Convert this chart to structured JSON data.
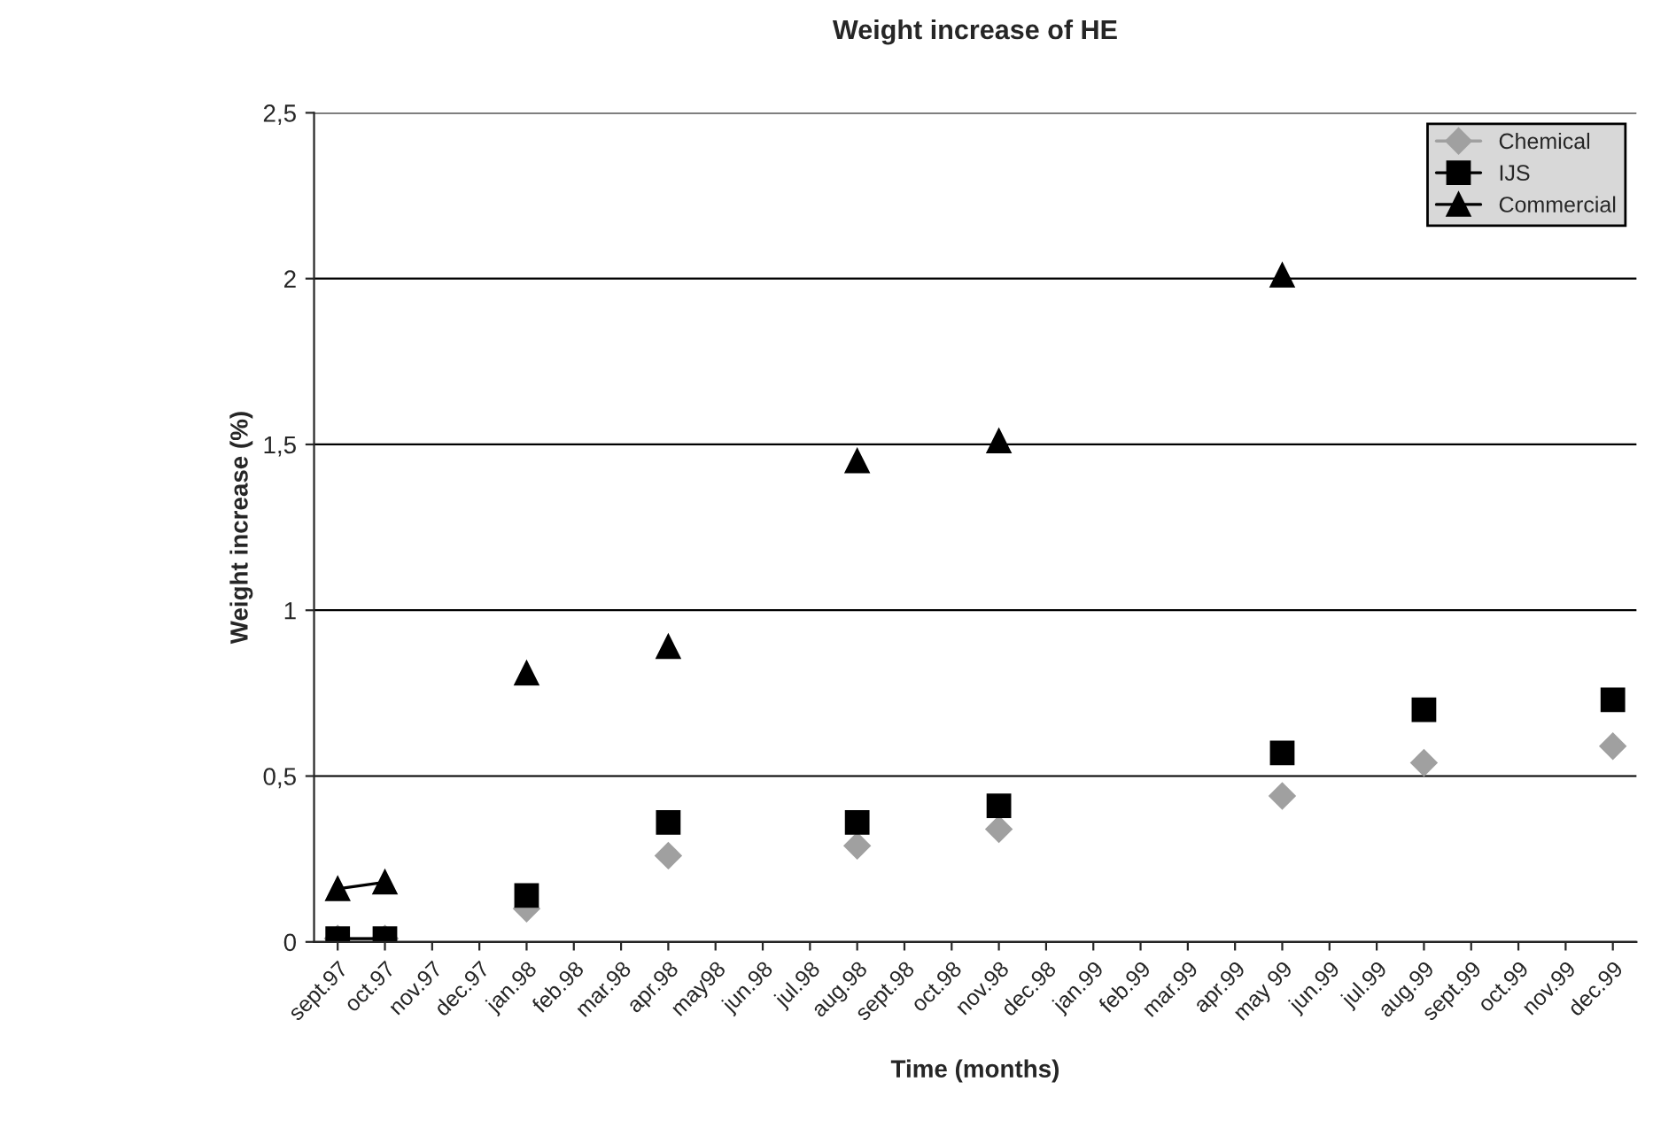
{
  "chart_data": {
    "type": "line",
    "title": "Weight increase of HE",
    "xlabel": "Time (months)",
    "ylabel": "Weight increase (%)",
    "categories": [
      "sept.97",
      "oct.97",
      "nov.97",
      "dec.97",
      "jan.98",
      "feb.98",
      "mar.98",
      "apr.98",
      "may98",
      "jun.98",
      "jul.98",
      "aug.98",
      "sept.98",
      "oct.98",
      "nov.98",
      "dec.98",
      "jan.99",
      "feb.99",
      "mar.99",
      "apr.99",
      "may 99",
      "jun.99",
      "jul.99",
      "aug.99",
      "sept.99",
      "oct.99",
      "nov.99",
      "dec.99"
    ],
    "series": [
      {
        "name": "Chemical",
        "color": "#a0a0a0",
        "marker": "diamond",
        "values": [
          0.01,
          0.01,
          null,
          null,
          0.1,
          null,
          null,
          0.26,
          null,
          null,
          null,
          0.29,
          null,
          null,
          0.34,
          null,
          null,
          null,
          null,
          null,
          0.44,
          null,
          null,
          0.54,
          null,
          null,
          null,
          0.59
        ]
      },
      {
        "name": "IJS",
        "color": "#000000",
        "marker": "square",
        "values": [
          0.01,
          0.01,
          null,
          null,
          0.14,
          null,
          null,
          0.36,
          null,
          null,
          null,
          0.36,
          null,
          null,
          0.41,
          null,
          null,
          null,
          null,
          null,
          0.57,
          null,
          null,
          0.7,
          null,
          null,
          null,
          0.73
        ]
      },
      {
        "name": "Commercial",
        "color": "#000000",
        "marker": "triangle",
        "values": [
          0.16,
          0.18,
          null,
          null,
          0.81,
          null,
          null,
          0.89,
          null,
          null,
          null,
          1.45,
          null,
          null,
          1.51,
          null,
          null,
          null,
          null,
          null,
          2.01,
          null,
          null,
          null,
          null,
          null,
          null,
          null
        ]
      }
    ],
    "ylim": [
      0,
      2.5
    ],
    "yticks": [
      {
        "value": 0,
        "label": "0"
      },
      {
        "value": 0.5,
        "label": "0,5"
      },
      {
        "value": 1,
        "label": "1"
      },
      {
        "value": 1.5,
        "label": "1,5"
      },
      {
        "value": 2,
        "label": "2"
      },
      {
        "value": 2.5,
        "label": "2,5"
      }
    ],
    "grid": "y",
    "legend": "top right",
    "line_style": "solid"
  }
}
